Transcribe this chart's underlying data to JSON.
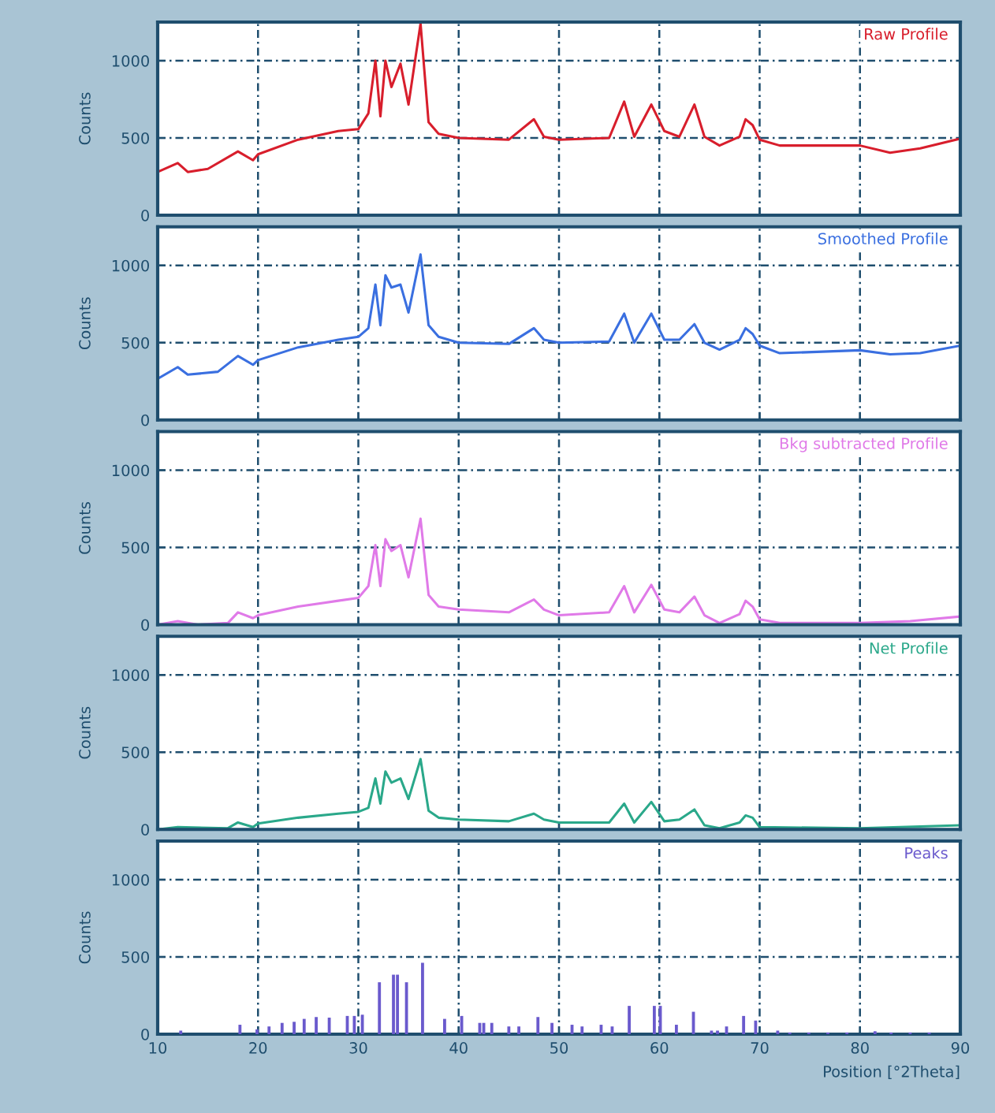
{
  "chart_data": [
    {
      "type": "line",
      "ylabel": "Counts",
      "xlim": [
        10,
        90
      ],
      "ylim": [
        0,
        1250
      ],
      "xticks": [
        10,
        20,
        30,
        40,
        50,
        60,
        70,
        80,
        90
      ],
      "yticks": [
        0,
        500,
        1000
      ],
      "grid": true,
      "tick_labels": "y",
      "series": [
        {
          "name": "Raw Profile",
          "color": "#d81e2c",
          "x": [
            10,
            12,
            13,
            15,
            18,
            19.5,
            20,
            24,
            28,
            30,
            31,
            31.7,
            32.2,
            32.7,
            33.3,
            34.2,
            35,
            36.2,
            37,
            38,
            40,
            45,
            47.5,
            48.5,
            50,
            55,
            56.5,
            57.5,
            59.2,
            60.5,
            62,
            63.5,
            64.5,
            66,
            68,
            68.6,
            69.3,
            70,
            72,
            80,
            83,
            86,
            90
          ],
          "values": [
            280,
            338,
            280,
            300,
            413,
            356,
            394,
            489,
            545,
            557,
            659,
            1000,
            640,
            1000,
            830,
            981,
            716,
            1240,
            602,
            527,
            500,
            489,
            621,
            508,
            489,
            500,
            735,
            508,
            716,
            545,
            508,
            716,
            508,
            451,
            508,
            621,
            583,
            489,
            451,
            451,
            405,
            432,
            496
          ]
        }
      ]
    },
    {
      "type": "line",
      "ylabel": "Counts",
      "xlim": [
        10,
        90
      ],
      "ylim": [
        0,
        1250
      ],
      "xticks": [
        10,
        20,
        30,
        40,
        50,
        60,
        70,
        80,
        90
      ],
      "yticks": [
        0,
        500,
        1000
      ],
      "grid": true,
      "tick_labels": "y",
      "series": [
        {
          "name": "Smoothed Profile",
          "color": "#3a6fe0",
          "x": [
            10,
            12,
            13,
            16,
            18,
            19.5,
            20,
            24,
            28,
            30,
            31,
            31.7,
            32.2,
            32.7,
            33.3,
            34.2,
            35,
            36.2,
            37,
            38,
            40,
            45,
            47.5,
            48.5,
            50,
            55,
            56.5,
            57.5,
            59.2,
            60.5,
            62,
            63.5,
            64.5,
            66,
            68,
            68.6,
            69.3,
            70,
            72,
            80,
            83,
            86,
            90
          ],
          "values": [
            267,
            342,
            293,
            312,
            414,
            357,
            387,
            470,
            519,
            538,
            594,
            876,
            613,
            936,
            857,
            876,
            695,
            1071,
            613,
            538,
            500,
            492,
            594,
            519,
            500,
            508,
            688,
            500,
            688,
            519,
            519,
            620,
            500,
            455,
            519,
            594,
            556,
            481,
            432,
            451,
            425,
            432,
            481
          ]
        }
      ]
    },
    {
      "type": "line",
      "ylabel": "Counts",
      "xlim": [
        10,
        90
      ],
      "ylim": [
        0,
        1250
      ],
      "xticks": [
        10,
        20,
        30,
        40,
        50,
        60,
        70,
        80,
        90
      ],
      "yticks": [
        0,
        500,
        1000
      ],
      "grid": true,
      "tick_labels": "y",
      "series": [
        {
          "name": "Bkg subtracted Profile",
          "color": "#e07ae8",
          "x": [
            10,
            12,
            14,
            17,
            18,
            19.5,
            20,
            24,
            28,
            30,
            31,
            31.7,
            32.2,
            32.7,
            33.3,
            34.2,
            35,
            36.2,
            37,
            38,
            40,
            45,
            47.5,
            48.5,
            50,
            55,
            56.5,
            57.5,
            59.2,
            60.5,
            62,
            63.5,
            64.5,
            66,
            68,
            68.6,
            69.3,
            70,
            72,
            80,
            85,
            90
          ],
          "values": [
            0,
            23,
            0,
            11,
            80,
            42,
            61,
            117,
            155,
            174,
            250,
            515,
            250,
            553,
            477,
            515,
            307,
            686,
            193,
            117,
            98,
            80,
            163,
            98,
            61,
            80,
            250,
            80,
            258,
            98,
            80,
            182,
            61,
            11,
            68,
            155,
            117,
            34,
            11,
            11,
            23,
            53
          ]
        }
      ]
    },
    {
      "type": "line",
      "ylabel": "Counts",
      "xlim": [
        10,
        90
      ],
      "ylim": [
        0,
        1250
      ],
      "xticks": [
        10,
        20,
        30,
        40,
        50,
        60,
        70,
        80,
        90
      ],
      "yticks": [
        0,
        500,
        1000
      ],
      "grid": true,
      "tick_labels": "y",
      "series": [
        {
          "name": "Net Profile",
          "color": "#2aa88a",
          "x": [
            10,
            12,
            17,
            18,
            19.5,
            20,
            24,
            28,
            30,
            31,
            31.7,
            32.2,
            32.7,
            33.3,
            34.2,
            35,
            36.2,
            37,
            38,
            40,
            45,
            47.5,
            48.5,
            50,
            55,
            56.5,
            57.5,
            59.2,
            60.5,
            62,
            63.5,
            64.5,
            66,
            68,
            68.6,
            69.3,
            70,
            80,
            90
          ],
          "values": [
            0,
            15,
            8,
            45,
            15,
            38,
            76,
            102,
            114,
            140,
            330,
            167,
            375,
            303,
            330,
            197,
            455,
            121,
            76,
            64,
            53,
            102,
            64,
            45,
            45,
            167,
            45,
            178,
            53,
            64,
            129,
            27,
            8,
            45,
            91,
            76,
            15,
            8,
            27
          ]
        }
      ]
    },
    {
      "type": "bar",
      "ylabel": "Counts",
      "xlabel": "Position [°2Theta]",
      "xlim": [
        10,
        90
      ],
      "ylim": [
        0,
        1250
      ],
      "xticks": [
        10,
        20,
        30,
        40,
        50,
        60,
        70,
        80,
        90
      ],
      "yticks": [
        0,
        500,
        1000
      ],
      "grid": true,
      "series": [
        {
          "name": "Peaks",
          "color": "#6a5acd",
          "x": [
            12.3,
            18.2,
            19.9,
            21.1,
            22.4,
            23.6,
            24.6,
            25.8,
            27.1,
            28.9,
            29.6,
            30.4,
            32.1,
            33.5,
            33.9,
            34.8,
            36.4,
            38.6,
            40.3,
            42.1,
            42.5,
            43.3,
            45.0,
            46.0,
            47.9,
            49.3,
            51.3,
            52.3,
            54.2,
            55.3,
            57.0,
            59.5,
            60.1,
            61.7,
            63.4,
            65.2,
            65.8,
            66.7,
            68.4,
            69.6,
            71.8,
            73.0,
            74.9,
            76.8,
            78.7,
            81.5,
            83.1,
            85.0,
            86.9
          ],
          "values": [
            23,
            61,
            31,
            50,
            73,
            80,
            99,
            111,
            107,
            118,
            118,
            126,
            336,
            385,
            385,
            336,
            462,
            99,
            118,
            73,
            73,
            73,
            50,
            50,
            111,
            73,
            61,
            50,
            61,
            50,
            183,
            183,
            183,
            61,
            145,
            23,
            23,
            50,
            118,
            88,
            23,
            11,
            11,
            11,
            11,
            19,
            11,
            11,
            11
          ]
        }
      ]
    }
  ]
}
